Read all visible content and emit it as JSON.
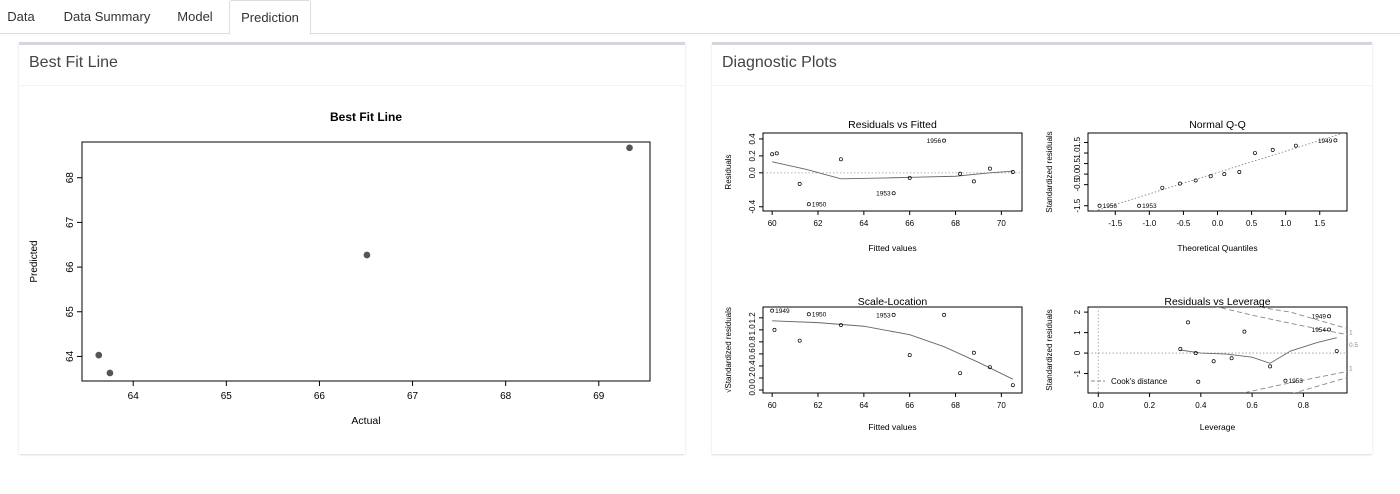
{
  "tabs": [
    {
      "label": "Data",
      "active": false
    },
    {
      "label": "Data Summary",
      "active": false
    },
    {
      "label": "Model",
      "active": false
    },
    {
      "label": "Prediction",
      "active": true
    }
  ],
  "left_panel": {
    "title": "Best Fit Line"
  },
  "right_panel": {
    "title": "Diagnostic Plots"
  },
  "chart_data": [
    {
      "type": "scatter",
      "title": "Best Fit Line",
      "xlabel": "Actual",
      "ylabel": "Predicted",
      "xlim": [
        63.45,
        69.55
      ],
      "ylim": [
        63.45,
        68.8
      ],
      "x_ticks": [
        64,
        65,
        66,
        67,
        68,
        69
      ],
      "y_ticks": [
        64,
        65,
        66,
        67,
        68
      ],
      "points": [
        {
          "x": 63.63,
          "y": 64.03
        },
        {
          "x": 63.75,
          "y": 63.63
        },
        {
          "x": 66.51,
          "y": 66.27
        },
        {
          "x": 69.33,
          "y": 68.67
        }
      ]
    },
    {
      "type": "scatter",
      "title": "Residuals vs Fitted",
      "xlabel": "Fitted values",
      "ylabel": "Residuals",
      "xlim": [
        59.6,
        70.9
      ],
      "ylim": [
        -0.45,
        0.47
      ],
      "x_ticks": [
        60,
        62,
        64,
        66,
        68,
        70
      ],
      "y_ticks": [
        -0.4,
        0.0,
        0.2,
        0.4
      ],
      "y_tick_labels": [
        "-0.4",
        "0.0",
        "0.2",
        "0.4"
      ],
      "refline": {
        "type": "h",
        "value": 0
      },
      "points": [
        {
          "x": 60.0,
          "y": 0.22
        },
        {
          "x": 60.2,
          "y": 0.23
        },
        {
          "x": 61.2,
          "y": -0.13
        },
        {
          "x": 61.6,
          "y": -0.37
        },
        {
          "x": 63.0,
          "y": 0.16
        },
        {
          "x": 65.3,
          "y": -0.24
        },
        {
          "x": 66.0,
          "y": -0.06
        },
        {
          "x": 67.5,
          "y": 0.38
        },
        {
          "x": 68.2,
          "y": -0.01
        },
        {
          "x": 68.8,
          "y": -0.1
        },
        {
          "x": 69.5,
          "y": 0.05
        },
        {
          "x": 70.5,
          "y": 0.01
        }
      ],
      "smooth": [
        [
          60.0,
          0.13
        ],
        [
          61.5,
          0.04
        ],
        [
          63.0,
          -0.07
        ],
        [
          65.0,
          -0.06
        ],
        [
          66.5,
          -0.05
        ],
        [
          68.0,
          -0.04
        ],
        [
          69.5,
          0.0
        ],
        [
          70.5,
          0.02
        ]
      ],
      "labels": [
        {
          "x": 61.6,
          "y": -0.37,
          "text": "1950",
          "side": "right"
        },
        {
          "x": 65.3,
          "y": -0.24,
          "text": "1953",
          "side": "left"
        },
        {
          "x": 67.5,
          "y": 0.38,
          "text": "1956",
          "side": "left"
        }
      ]
    },
    {
      "type": "scatter",
      "title": "Normal Q-Q",
      "xlabel": "Theoretical Quantiles",
      "ylabel": "Standardized residuals",
      "xlim": [
        -1.9,
        1.9
      ],
      "ylim": [
        -1.75,
        1.95
      ],
      "x_ticks": [
        -1.5,
        -1.0,
        -0.5,
        0.0,
        0.5,
        1.0,
        1.5
      ],
      "x_tick_labels": [
        "-1.5",
        "-1.0",
        "-0.5",
        "0.0",
        "0.5",
        "1.0",
        "1.5"
      ],
      "y_ticks": [
        -1.5,
        -0.5,
        0.0,
        0.5,
        1.0,
        1.5
      ],
      "y_tick_labels": [
        "-1.5",
        "-0.5",
        "0.0",
        "0.5",
        "1.0",
        "1.5"
      ],
      "refline": {
        "type": "ab",
        "points": [
          [
            -1.9,
            -1.85
          ],
          [
            1.9,
            2.0
          ]
        ]
      },
      "points": [
        {
          "x": -1.73,
          "y": -1.5
        },
        {
          "x": -1.15,
          "y": -1.5
        },
        {
          "x": -0.81,
          "y": -0.65
        },
        {
          "x": -0.55,
          "y": -0.45
        },
        {
          "x": -0.32,
          "y": -0.3
        },
        {
          "x": -0.1,
          "y": -0.1
        },
        {
          "x": 0.1,
          "y": 0.0
        },
        {
          "x": 0.32,
          "y": 0.1
        },
        {
          "x": 0.55,
          "y": 1.0
        },
        {
          "x": 0.81,
          "y": 1.15
        },
        {
          "x": 1.15,
          "y": 1.35
        },
        {
          "x": 1.73,
          "y": 1.6
        }
      ],
      "labels": [
        {
          "x": -1.73,
          "y": -1.5,
          "text": "1956",
          "side": "right"
        },
        {
          "x": -1.15,
          "y": -1.5,
          "text": "1953",
          "side": "right"
        },
        {
          "x": 1.73,
          "y": 1.6,
          "text": "1949",
          "side": "left"
        }
      ]
    },
    {
      "type": "scatter",
      "title": "Scale-Location",
      "xlabel": "Fitted values",
      "ylabel": "√Standardized residuals",
      "xlim": [
        59.6,
        70.9
      ],
      "ylim": [
        -0.05,
        1.38
      ],
      "x_ticks": [
        60,
        62,
        64,
        66,
        68,
        70
      ],
      "y_ticks": [
        0.0,
        0.2,
        0.4,
        0.6,
        0.8,
        1.0,
        1.2
      ],
      "y_tick_labels": [
        "0.0",
        "0.2",
        "0.4",
        "0.6",
        "0.8",
        "1.0",
        "1.2"
      ],
      "points": [
        {
          "x": 60.0,
          "y": 1.32
        },
        {
          "x": 60.1,
          "y": 1.0
        },
        {
          "x": 61.2,
          "y": 0.82
        },
        {
          "x": 61.6,
          "y": 1.26
        },
        {
          "x": 63.0,
          "y": 1.08
        },
        {
          "x": 65.3,
          "y": 1.25
        },
        {
          "x": 66.0,
          "y": 0.58
        },
        {
          "x": 67.5,
          "y": 1.25
        },
        {
          "x": 68.2,
          "y": 0.28
        },
        {
          "x": 68.8,
          "y": 0.62
        },
        {
          "x": 69.5,
          "y": 0.38
        },
        {
          "x": 70.5,
          "y": 0.08
        }
      ],
      "smooth": [
        [
          60.0,
          1.15
        ],
        [
          62.0,
          1.12
        ],
        [
          64.0,
          1.06
        ],
        [
          66.0,
          0.92
        ],
        [
          67.5,
          0.72
        ],
        [
          69.0,
          0.46
        ],
        [
          70.5,
          0.18
        ]
      ],
      "labels": [
        {
          "x": 60.0,
          "y": 1.32,
          "text": "1949",
          "side": "right"
        },
        {
          "x": 61.6,
          "y": 1.26,
          "text": "1950",
          "side": "right"
        },
        {
          "x": 65.3,
          "y": 1.25,
          "text": "1953",
          "side": "left"
        }
      ]
    },
    {
      "type": "scatter",
      "title": "Residuals vs Leverage",
      "xlabel": "Leverage",
      "ylabel": "Standardized residuals",
      "xlim": [
        -0.04,
        0.97
      ],
      "ylim": [
        -1.95,
        2.25
      ],
      "x_ticks": [
        0.0,
        0.2,
        0.4,
        0.6,
        0.8
      ],
      "x_tick_labels": [
        "0.0",
        "0.2",
        "0.4",
        "0.6",
        "0.8"
      ],
      "y_ticks": [
        -1,
        0,
        1,
        2
      ],
      "y_tick_labels": [
        "-1",
        "0",
        "1",
        "2"
      ],
      "refline": {
        "type": "h",
        "value": 0
      },
      "vline": 0,
      "points": [
        {
          "x": 0.32,
          "y": 0.2
        },
        {
          "x": 0.35,
          "y": 1.5
        },
        {
          "x": 0.38,
          "y": 0.0
        },
        {
          "x": 0.39,
          "y": -1.4
        },
        {
          "x": 0.45,
          "y": -0.4
        },
        {
          "x": 0.52,
          "y": -0.25
        },
        {
          "x": 0.57,
          "y": 1.05
        },
        {
          "x": 0.67,
          "y": -0.65
        },
        {
          "x": 0.73,
          "y": -1.35
        },
        {
          "x": 0.9,
          "y": 1.8
        },
        {
          "x": 0.9,
          "y": 1.15
        },
        {
          "x": 0.93,
          "y": 0.1
        }
      ],
      "smooth": [
        [
          0.32,
          0.15
        ],
        [
          0.4,
          0.0
        ],
        [
          0.5,
          -0.05
        ],
        [
          0.6,
          -0.2
        ],
        [
          0.67,
          -0.5
        ],
        [
          0.75,
          0.1
        ],
        [
          0.85,
          0.5
        ],
        [
          0.93,
          0.75
        ]
      ],
      "cooks_upper": [
        [
          [
            0.45,
            2.3
          ],
          [
            0.6,
            1.85
          ],
          [
            0.75,
            1.45
          ],
          [
            0.97,
            0.9
          ]
        ],
        [
          [
            0.6,
            2.3
          ],
          [
            0.75,
            2.0
          ],
          [
            0.97,
            1.2
          ]
        ]
      ],
      "cooks_lower": [
        [
          [
            0.45,
            -2.3
          ],
          [
            0.6,
            -1.85
          ],
          [
            0.75,
            -1.45
          ],
          [
            0.97,
            -0.9
          ]
        ],
        [
          [
            0.6,
            -2.3
          ],
          [
            0.75,
            -2.0
          ],
          [
            0.97,
            -1.2
          ]
        ]
      ],
      "contour_labels": [
        {
          "x": 0.97,
          "y": 0.45,
          "text": "0.5"
        },
        {
          "x": 0.97,
          "y": 1.05,
          "text": "1"
        },
        {
          "x": 0.97,
          "y": -0.7,
          "text": "1"
        }
      ],
      "legend": {
        "text": "Cook's distance",
        "position": "bottom-left"
      },
      "labels": [
        {
          "x": 0.9,
          "y": 1.8,
          "text": "1949",
          "side": "left"
        },
        {
          "x": 0.9,
          "y": 1.15,
          "text": "1954",
          "side": "left"
        },
        {
          "x": 0.73,
          "y": -1.35,
          "text": "1953",
          "side": "right"
        }
      ]
    }
  ]
}
